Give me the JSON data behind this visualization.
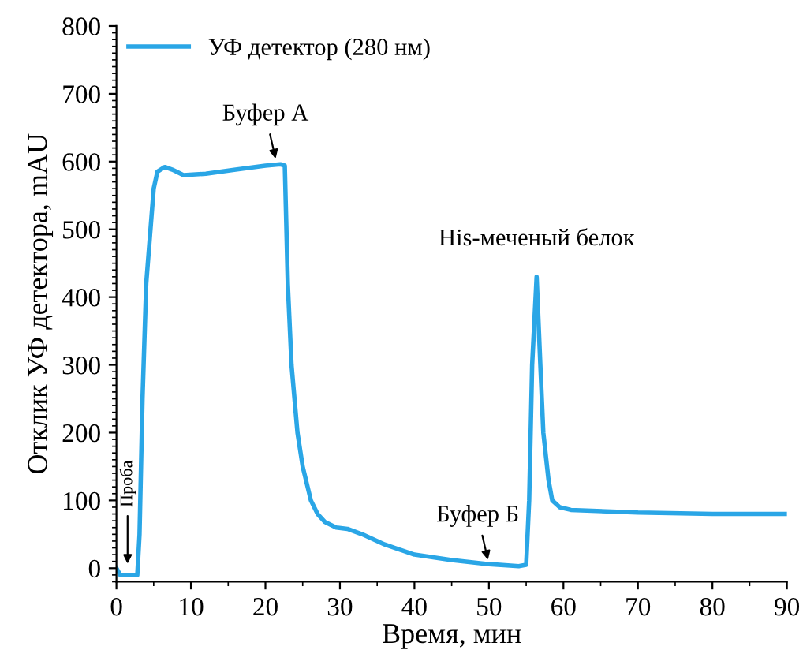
{
  "chart_data": {
    "type": "line",
    "xlabel": "Время, мин",
    "ylabel": "Отклик УФ детектора, mAU",
    "xlim": [
      0,
      90
    ],
    "ylim": [
      -20,
      800
    ],
    "xticks": [
      0,
      10,
      20,
      30,
      40,
      50,
      60,
      70,
      80,
      90
    ],
    "yticks": [
      0,
      100,
      200,
      300,
      400,
      500,
      600,
      700,
      800
    ],
    "grid": false,
    "legend": "top left",
    "marker": "none",
    "line_style": "solid",
    "series": [
      {
        "name": "УФ детектор (280 нм)",
        "color": "#2aa6e6",
        "x": [
          0,
          0.5,
          1,
          2,
          2.8,
          3.1,
          3.5,
          4,
          4.5,
          5,
          5.5,
          6.5,
          7.5,
          9,
          12,
          16,
          20,
          22,
          22.6,
          23,
          23.5,
          24.3,
          25,
          26.1,
          27,
          28,
          29.5,
          31,
          33,
          36,
          40,
          45,
          50,
          54,
          55,
          55.4,
          55.8,
          56.4,
          56.9,
          57.3,
          58,
          58.5,
          59.5,
          61,
          70,
          80,
          90
        ],
        "values": [
          0,
          -10,
          -10,
          -10,
          -10,
          50,
          250,
          420,
          490,
          560,
          585,
          592,
          588,
          580,
          582,
          588,
          594,
          596,
          594,
          420,
          300,
          200,
          150,
          100,
          80,
          68,
          60,
          58,
          50,
          35,
          20,
          12,
          6,
          3,
          5,
          100,
          300,
          430,
          300,
          200,
          130,
          100,
          90,
          86,
          82,
          80,
          80
        ]
      }
    ],
    "annotations": [
      {
        "text": "Проба",
        "x": 1.5,
        "y": 0
      },
      {
        "text": "Буфер А",
        "x": 21.5,
        "y": 598
      },
      {
        "text": "Буфер Б",
        "x": 50,
        "y": 6
      },
      {
        "text": "His-меченый белок",
        "x": 56.4,
        "y": 430
      }
    ]
  }
}
